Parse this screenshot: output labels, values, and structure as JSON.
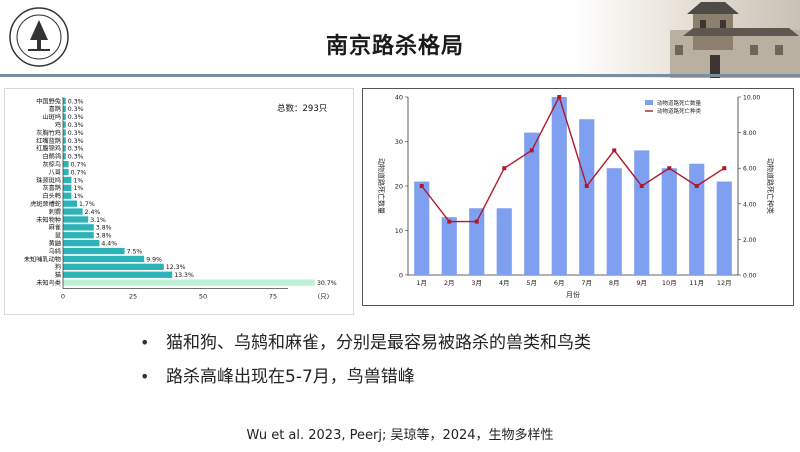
{
  "slide": {
    "title": "南京路杀格局",
    "bullets": [
      "猫和狗、乌鸫和麻雀，分别是最容易被路杀的兽类和鸟类",
      "路杀高峰出现在5-7月，鸟兽错峰"
    ],
    "citation": "Wu et al. 2023, Peerj; 吴琼等，2024，生物多样性",
    "accent_colors": {
      "rule": "#7a8ea0",
      "hbar": "#2bb3b8",
      "hbar_light": "#bff0d8",
      "vbar": "#7f9ff0",
      "line": "#b2182b"
    }
  },
  "chart_data": [
    {
      "type": "bar",
      "orientation": "horizontal",
      "total_label": "总数：293只",
      "categories": [
        "中国野兔",
        "喜鹊",
        "山斑鸠",
        "鸡",
        "灰胸竹鸡",
        "红嘴蓝鹊",
        "红腹锦鸡",
        "白鹡鸰",
        "灰椋鸟",
        "八哥",
        "珠颈斑鸠",
        "灰喜鹊",
        "白头鹎",
        "虎斑颈槽蛇",
        "刺猬",
        "未知物种",
        "麻雀",
        "鼠",
        "黄鼬",
        "乌鸫",
        "未知哺乳动物",
        "狗",
        "猫",
        "未知鸟类"
      ],
      "values": [
        1,
        1,
        1,
        1,
        1,
        1,
        1,
        1,
        2,
        2,
        3,
        3,
        3,
        5,
        7,
        9,
        11,
        11,
        13,
        22,
        29,
        36,
        39,
        90
      ],
      "value_labels": [
        "0.3%",
        "0.3%",
        "0.3%",
        "0.3%",
        "0.3%",
        "0.3%",
        "0.3%",
        "0.3%",
        "0.7%",
        "0.7%",
        "1%",
        "1%",
        "1%",
        "1.7%",
        "2.4%",
        "3.1%",
        "3.8%",
        "3.8%",
        "4.4%",
        "7.5%",
        "9.9%",
        "12.3%",
        "13.3%",
        "30.7%"
      ],
      "xlim": [
        0,
        100
      ],
      "xticks": [
        "0",
        "25",
        "50",
        "75"
      ],
      "xunit": "(只)"
    },
    {
      "type": "bar+line",
      "categories": [
        "1月",
        "2月",
        "3月",
        "4月",
        "5月",
        "6月",
        "7月",
        "8月",
        "9月",
        "10月",
        "11月",
        "12月"
      ],
      "xlabel": "月份",
      "series": [
        {
          "name": "动物道路死亡数量",
          "type": "bar",
          "values": [
            21,
            13,
            15,
            15,
            32,
            40,
            35,
            24,
            28,
            24,
            25,
            21
          ]
        },
        {
          "name": "动物道路死亡种类",
          "type": "line",
          "values": [
            5,
            3,
            3,
            6,
            7,
            10,
            5,
            7,
            5,
            6,
            5,
            6
          ]
        }
      ],
      "ylabel_left": "动物道路死亡数量",
      "ylabel_right": "动物道路死亡种类",
      "ylim_left": [
        0,
        40
      ],
      "ylim_right": [
        0,
        10
      ],
      "yticks_left": [
        "0",
        "10",
        "20",
        "30",
        "40"
      ],
      "yticks_right": [
        "0.00",
        "2.00",
        "4.00",
        "6.00",
        "8.00",
        "10.00"
      ],
      "legend": "top-right"
    }
  ]
}
